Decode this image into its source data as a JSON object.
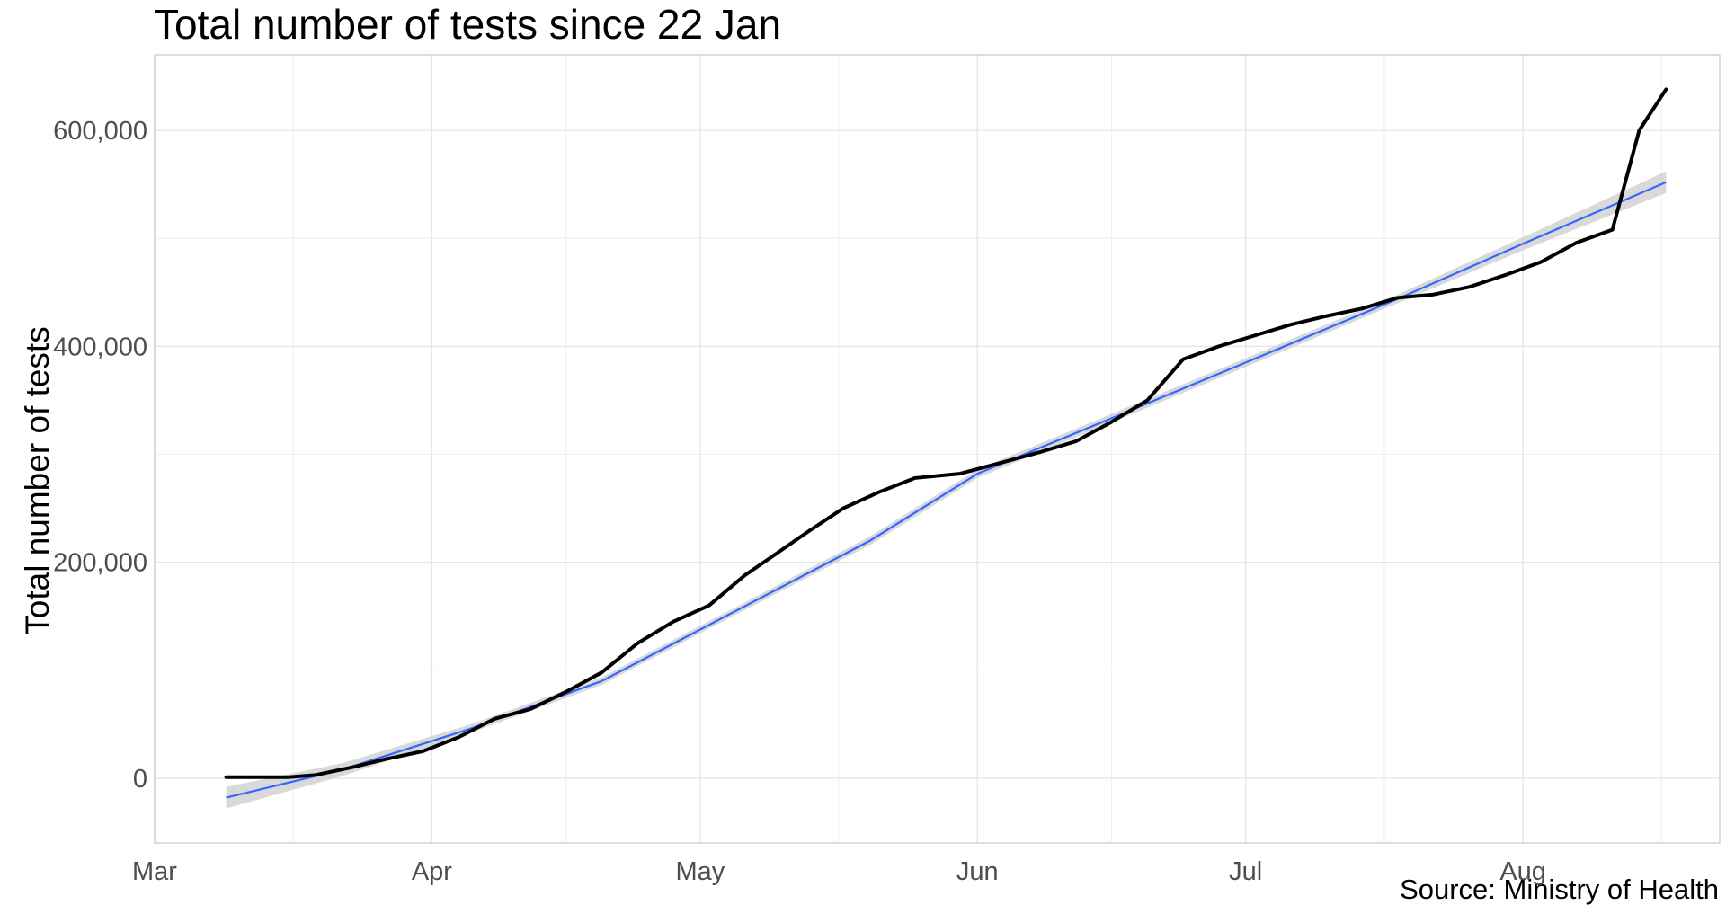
{
  "chart_data": {
    "type": "line",
    "title": "Total number of tests since 22 Jan",
    "ylabel": "Total number of tests",
    "xlabel": "",
    "caption": "Source: Ministry of Health",
    "x_domain": [
      "2020-03-01",
      "2020-08-23"
    ],
    "ylim": [
      -60000,
      670000
    ],
    "x_ticks": [
      {
        "label": "Mar",
        "date": "2020-03-01"
      },
      {
        "label": "Apr",
        "date": "2020-04-01"
      },
      {
        "label": "May",
        "date": "2020-05-01"
      },
      {
        "label": "Jun",
        "date": "2020-06-01"
      },
      {
        "label": "Jul",
        "date": "2020-07-01"
      },
      {
        "label": "Aug",
        "date": "2020-08-01"
      }
    ],
    "y_ticks": [
      {
        "label": "0",
        "value": 0
      },
      {
        "label": "200,000",
        "value": 200000
      },
      {
        "label": "400,000",
        "value": 400000
      },
      {
        "label": "600,000",
        "value": 600000
      }
    ],
    "grid": true,
    "series": [
      {
        "color": "#000000",
        "points": [
          [
            "2020-03-09",
            1000
          ],
          [
            "2020-03-16",
            1000
          ],
          [
            "2020-03-19",
            3000
          ],
          [
            "2020-03-23",
            10000
          ],
          [
            "2020-03-27",
            18000
          ],
          [
            "2020-03-31",
            25000
          ],
          [
            "2020-04-04",
            38000
          ],
          [
            "2020-04-08",
            55000
          ],
          [
            "2020-04-12",
            64000
          ],
          [
            "2020-04-16",
            80000
          ],
          [
            "2020-04-20",
            98000
          ],
          [
            "2020-04-24",
            125000
          ],
          [
            "2020-04-28",
            145000
          ],
          [
            "2020-05-02",
            160000
          ],
          [
            "2020-05-06",
            188000
          ],
          [
            "2020-05-09",
            205000
          ],
          [
            "2020-05-13",
            228000
          ],
          [
            "2020-05-17",
            250000
          ],
          [
            "2020-05-21",
            265000
          ],
          [
            "2020-05-25",
            278000
          ],
          [
            "2020-05-30",
            282000
          ],
          [
            "2020-06-04",
            293000
          ],
          [
            "2020-06-08",
            302000
          ],
          [
            "2020-06-12",
            312000
          ],
          [
            "2020-06-16",
            330000
          ],
          [
            "2020-06-20",
            350000
          ],
          [
            "2020-06-24",
            388000
          ],
          [
            "2020-06-28",
            400000
          ],
          [
            "2020-07-02",
            410000
          ],
          [
            "2020-07-06",
            420000
          ],
          [
            "2020-07-10",
            428000
          ],
          [
            "2020-07-14",
            435000
          ],
          [
            "2020-07-18",
            445000
          ],
          [
            "2020-07-22",
            448000
          ],
          [
            "2020-07-26",
            455000
          ],
          [
            "2020-07-30",
            466000
          ],
          [
            "2020-08-03",
            478000
          ],
          [
            "2020-08-07",
            496000
          ],
          [
            "2020-08-11",
            508000
          ],
          [
            "2020-08-14",
            600000
          ],
          [
            "2020-08-17",
            638000
          ]
        ]
      }
    ],
    "smooth": {
      "color": "#3366ff",
      "band_color": "#cccccc",
      "points": [
        [
          "2020-03-09",
          -18000
        ],
        [
          "2020-03-22",
          8000
        ],
        [
          "2020-04-05",
          45000
        ],
        [
          "2020-04-20",
          90000
        ],
        [
          "2020-05-05",
          155000
        ],
        [
          "2020-05-20",
          220000
        ],
        [
          "2020-06-01",
          282000
        ],
        [
          "2020-06-15",
          330000
        ],
        [
          "2020-07-01",
          385000
        ],
        [
          "2020-07-18",
          444000
        ],
        [
          "2020-08-01",
          495000
        ],
        [
          "2020-08-17",
          552000
        ]
      ],
      "band_halfwidth": [
        10000,
        6000,
        4000,
        3500,
        3500,
        4000,
        4000,
        4000,
        4000,
        4000,
        6000,
        10000
      ]
    }
  }
}
